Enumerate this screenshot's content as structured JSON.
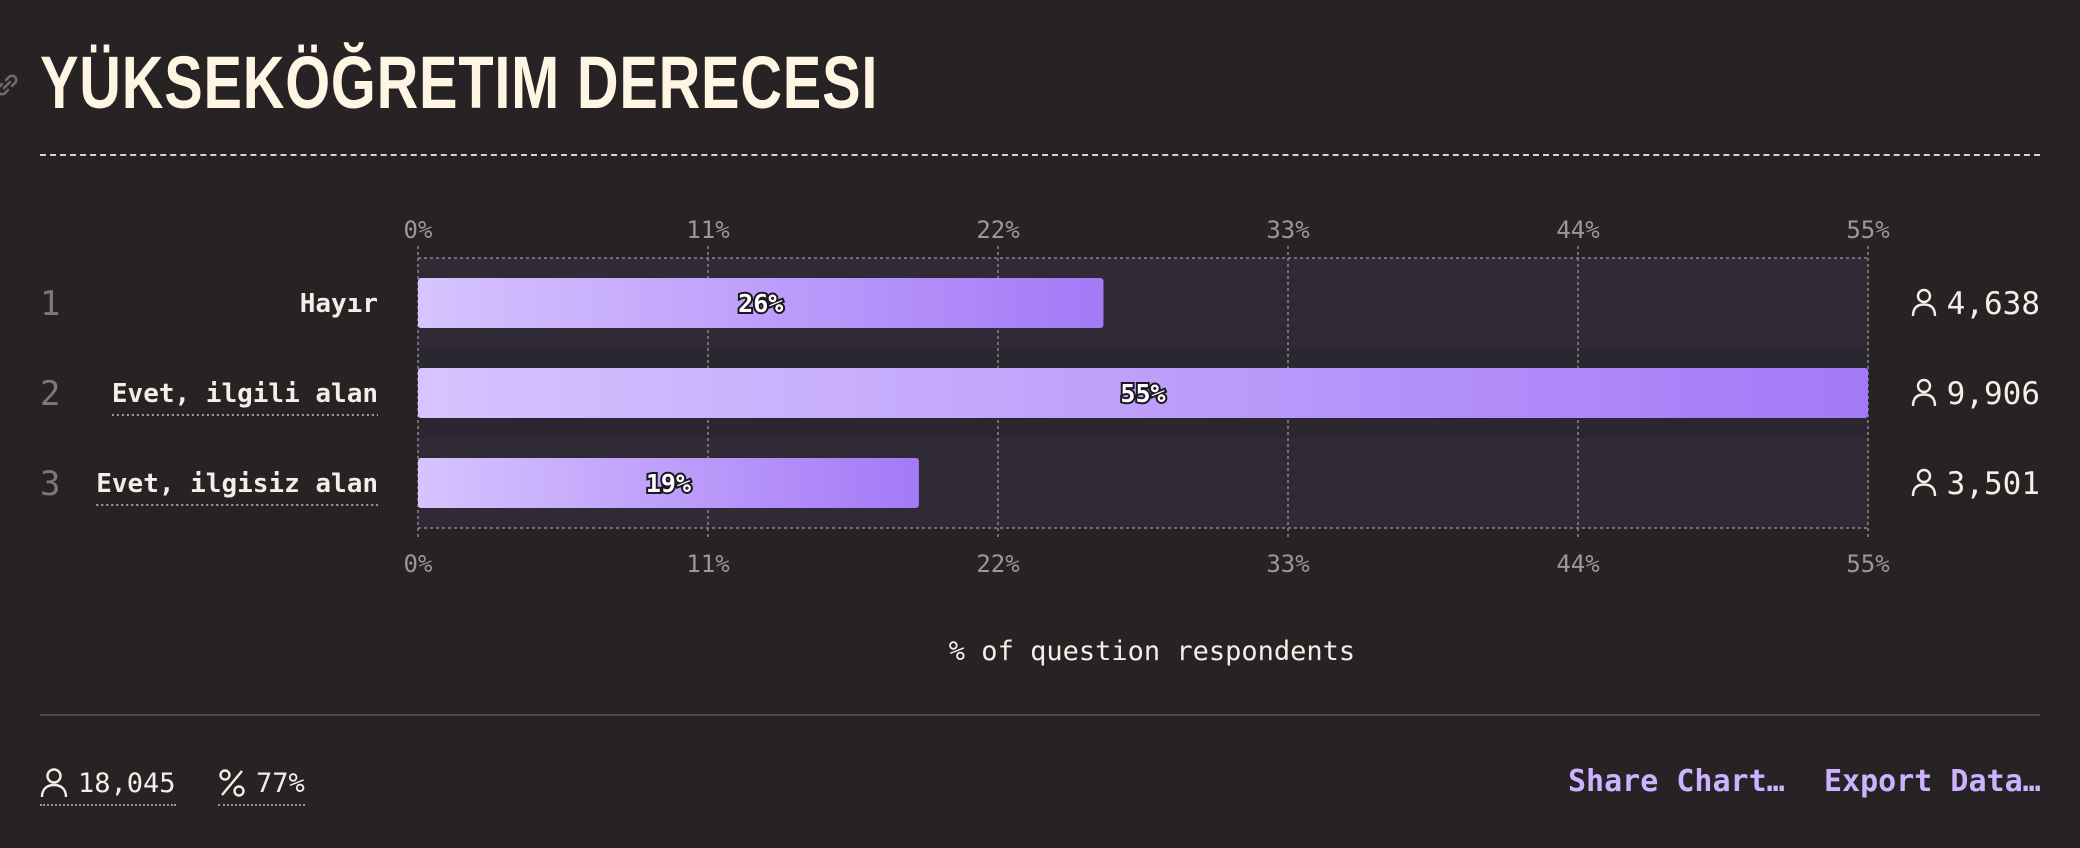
{
  "header": {
    "title": "YÜKSEKÖĞRETIM DERECESI"
  },
  "chart_data": {
    "type": "bar",
    "orientation": "horizontal",
    "title": "YÜKSEKÖĞRETIM DERECESI",
    "xlabel": "% of question respondents",
    "ylabel": "",
    "xlim": [
      0,
      55
    ],
    "xticks": [
      "0%",
      "11%",
      "22%",
      "33%",
      "44%",
      "55%"
    ],
    "ranks": [
      "1",
      "2",
      "3"
    ],
    "categories": [
      "Hayır",
      "Evet, ilgili alan",
      "Evet, ilgisiz alan"
    ],
    "values": [
      26,
      55,
      19
    ],
    "value_labels": [
      "26%",
      "55%",
      "19%"
    ],
    "counts": [
      "4,638",
      "9,906",
      "3,501"
    ],
    "grid": true,
    "legend": "none"
  },
  "footer": {
    "respondents": "18,045",
    "response_rate": "77%",
    "share_label": "Share Chart…",
    "export_label": "Export Data…"
  },
  "colors": {
    "background": "#272325",
    "bar_start": "#d7c4ff",
    "bar_end": "#a479f7",
    "track_dark": "#302a37",
    "track_light": "#2b2730",
    "title": "#fff5e3",
    "action": "#cdb3ff"
  },
  "icons": [
    "link-icon",
    "user-icon",
    "percent-icon"
  ]
}
